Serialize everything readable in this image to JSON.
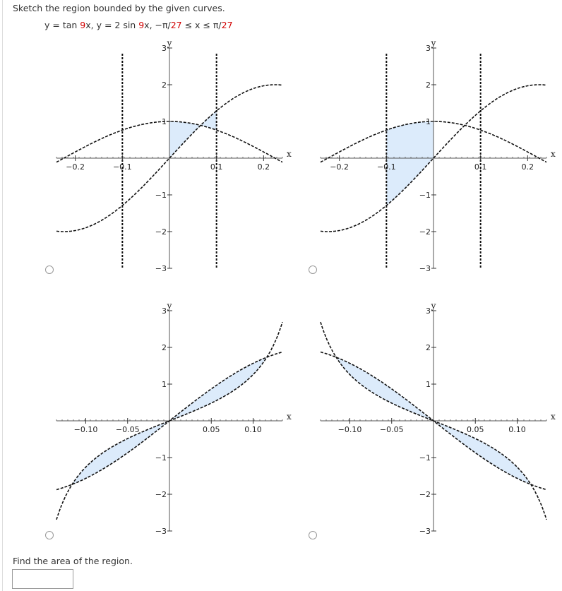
{
  "question": {
    "prompt": "Sketch the region bounded by the given curves.",
    "formula_parts": [
      {
        "text": "y = tan ",
        "red": false
      },
      {
        "text": "9",
        "red": true
      },
      {
        "text": "x,  y = 2 sin ",
        "red": false
      },
      {
        "text": "9",
        "red": true
      },
      {
        "text": "x,  −π/",
        "red": false
      },
      {
        "text": "27",
        "red": true
      },
      {
        "text": " ≤ x ≤ π/",
        "red": false
      },
      {
        "text": "27",
        "red": true
      }
    ]
  },
  "chart_data": [
    {
      "type": "line",
      "option": "A",
      "xlim": [
        -0.24,
        0.24
      ],
      "ylim": [
        -3,
        3
      ],
      "xticks": [
        {
          "value": -0.2,
          "label": "-0.2"
        },
        {
          "value": -0.1,
          "label": "-0.1"
        },
        {
          "value": 0.1,
          "label": "0.1"
        },
        {
          "value": 0.2,
          "label": "0.2"
        }
      ],
      "yticks": [
        {
          "value": 3,
          "label": "3"
        },
        {
          "value": 2,
          "label": "2"
        },
        {
          "value": 1,
          "label": "1"
        },
        {
          "value": -1,
          "label": "-1"
        },
        {
          "value": -2,
          "label": "-2"
        },
        {
          "value": -3,
          "label": "-3"
        }
      ],
      "xlabel": "x",
      "ylabel": "y",
      "curves": [
        {
          "f": "sin",
          "A": 2,
          "k": 7,
          "phase": 0
        },
        {
          "f": "sin",
          "A": 1,
          "k": 7,
          "phase": 1.5708
        }
      ],
      "vlines": [
        -0.1,
        0.1
      ],
      "shade": {
        "x0": 0,
        "x1": 0.1
      }
    },
    {
      "type": "line",
      "option": "B",
      "xlim": [
        -0.24,
        0.24
      ],
      "ylim": [
        -3,
        3
      ],
      "xticks": [
        {
          "value": -0.2,
          "label": "-0.2"
        },
        {
          "value": -0.1,
          "label": "-0.1"
        },
        {
          "value": 0.1,
          "label": "0.1"
        },
        {
          "value": 0.2,
          "label": "0.2"
        }
      ],
      "yticks": [
        {
          "value": 3,
          "label": "3"
        },
        {
          "value": 2,
          "label": "2"
        },
        {
          "value": 1,
          "label": "1"
        },
        {
          "value": -1,
          "label": "-1"
        },
        {
          "value": -2,
          "label": "-2"
        },
        {
          "value": -3,
          "label": "-3"
        }
      ],
      "xlabel": "x",
      "ylabel": "y",
      "curves": [
        {
          "f": "sin",
          "A": 2,
          "k": 7,
          "phase": 0
        },
        {
          "f": "sin",
          "A": 1,
          "k": 7,
          "phase": 1.5708
        }
      ],
      "vlines": [
        -0.1,
        0.1
      ],
      "shade": {
        "x0": -0.1,
        "x1": 0
      }
    },
    {
      "type": "line",
      "option": "C",
      "xlim": [
        -0.135,
        0.135
      ],
      "ylim": [
        -3,
        3
      ],
      "xticks": [
        {
          "value": -0.1,
          "label": "-0.10"
        },
        {
          "value": -0.05,
          "label": "-0.05"
        },
        {
          "value": 0.05,
          "label": "0.05"
        },
        {
          "value": 0.1,
          "label": "0.10"
        }
      ],
      "yticks": [
        {
          "value": 3,
          "label": "3"
        },
        {
          "value": 2,
          "label": "2"
        },
        {
          "value": 1,
          "label": "1"
        },
        {
          "value": -1,
          "label": "-1"
        },
        {
          "value": -2,
          "label": "-2"
        },
        {
          "value": -3,
          "label": "-3"
        }
      ],
      "xlabel": "x",
      "ylabel": "y",
      "curves": [
        {
          "f": "tan",
          "A": 1,
          "k": 9,
          "sign": 1
        },
        {
          "f": "sin",
          "A": 2,
          "k": 9,
          "sign": 1
        }
      ],
      "vlines": [],
      "shade": {
        "x0": -0.1164,
        "x1": 0.1164
      }
    },
    {
      "type": "line",
      "option": "D",
      "xlim": [
        -0.135,
        0.135
      ],
      "ylim": [
        -3,
        3
      ],
      "xticks": [
        {
          "value": -0.1,
          "label": "-0.10"
        },
        {
          "value": -0.05,
          "label": "-0.05"
        },
        {
          "value": 0.05,
          "label": "0.05"
        },
        {
          "value": 0.1,
          "label": "0.10"
        }
      ],
      "yticks": [
        {
          "value": 3,
          "label": "3"
        },
        {
          "value": 2,
          "label": "2"
        },
        {
          "value": 1,
          "label": "1"
        },
        {
          "value": -1,
          "label": "-1"
        },
        {
          "value": -2,
          "label": "-2"
        },
        {
          "value": -3,
          "label": "-3"
        }
      ],
      "xlabel": "x",
      "ylabel": "y",
      "curves": [
        {
          "f": "tan",
          "A": 1,
          "k": 9,
          "sign": -1
        },
        {
          "f": "sin",
          "A": 2,
          "k": 9,
          "sign": -1
        }
      ],
      "vlines": [],
      "shade": {
        "x0": -0.1164,
        "x1": 0.1164
      }
    }
  ],
  "colors": {
    "shade_fill": "#dcebfb",
    "curve": "#111111",
    "vline": "#111111",
    "answer_border": "#999999"
  },
  "answer": {
    "label": "Find the area of the region.",
    "value": ""
  }
}
